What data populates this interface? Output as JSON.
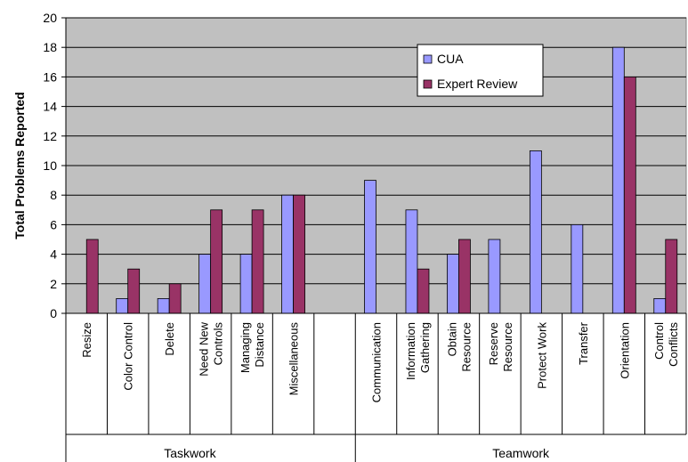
{
  "chart_data": {
    "type": "bar",
    "ylabel": "Total Problems Reported",
    "ylim": [
      0,
      20
    ],
    "yticks": [
      0,
      2,
      4,
      6,
      8,
      10,
      12,
      14,
      16,
      18,
      20
    ],
    "grid": true,
    "legend_position": "top-right",
    "categories": [
      {
        "lines": [
          "Resize"
        ],
        "group": "Taskwork"
      },
      {
        "lines": [
          "Color Control"
        ],
        "group": "Taskwork"
      },
      {
        "lines": [
          "Delete"
        ],
        "group": "Taskwork"
      },
      {
        "lines": [
          "Need New",
          "Controls"
        ],
        "group": "Taskwork"
      },
      {
        "lines": [
          "Managing",
          "Distance"
        ],
        "group": "Taskwork"
      },
      {
        "lines": [
          "Miscellaneous"
        ],
        "group": "Taskwork"
      },
      {
        "lines": [],
        "group": ""
      },
      {
        "lines": [
          "Communication"
        ],
        "group": "Teamwork"
      },
      {
        "lines": [
          "Information",
          "Gathering"
        ],
        "group": "Teamwork"
      },
      {
        "lines": [
          "Obtain",
          "Resource"
        ],
        "group": "Teamwork"
      },
      {
        "lines": [
          "Reserve",
          "Resource"
        ],
        "group": "Teamwork"
      },
      {
        "lines": [
          "Protect Work"
        ],
        "group": "Teamwork"
      },
      {
        "lines": [
          "Transfer"
        ],
        "group": "Teamwork"
      },
      {
        "lines": [
          "Orientation"
        ],
        "group": "Teamwork"
      },
      {
        "lines": [
          "Control",
          "Conflicts"
        ],
        "group": "Teamwork"
      }
    ],
    "groups": [
      "Taskwork",
      "Teamwork"
    ],
    "series": [
      {
        "name": "CUA",
        "color": "#9999ff",
        "values": [
          0,
          1,
          1,
          4,
          4,
          8,
          0,
          9,
          7,
          4,
          5,
          11,
          6,
          18,
          1
        ]
      },
      {
        "name": "Expert Review",
        "color": "#993366",
        "values": [
          5,
          3,
          2,
          7,
          7,
          8,
          0,
          0,
          3,
          5,
          0,
          0,
          0,
          16,
          5
        ]
      }
    ],
    "plot_background": "#c0c0c0"
  }
}
